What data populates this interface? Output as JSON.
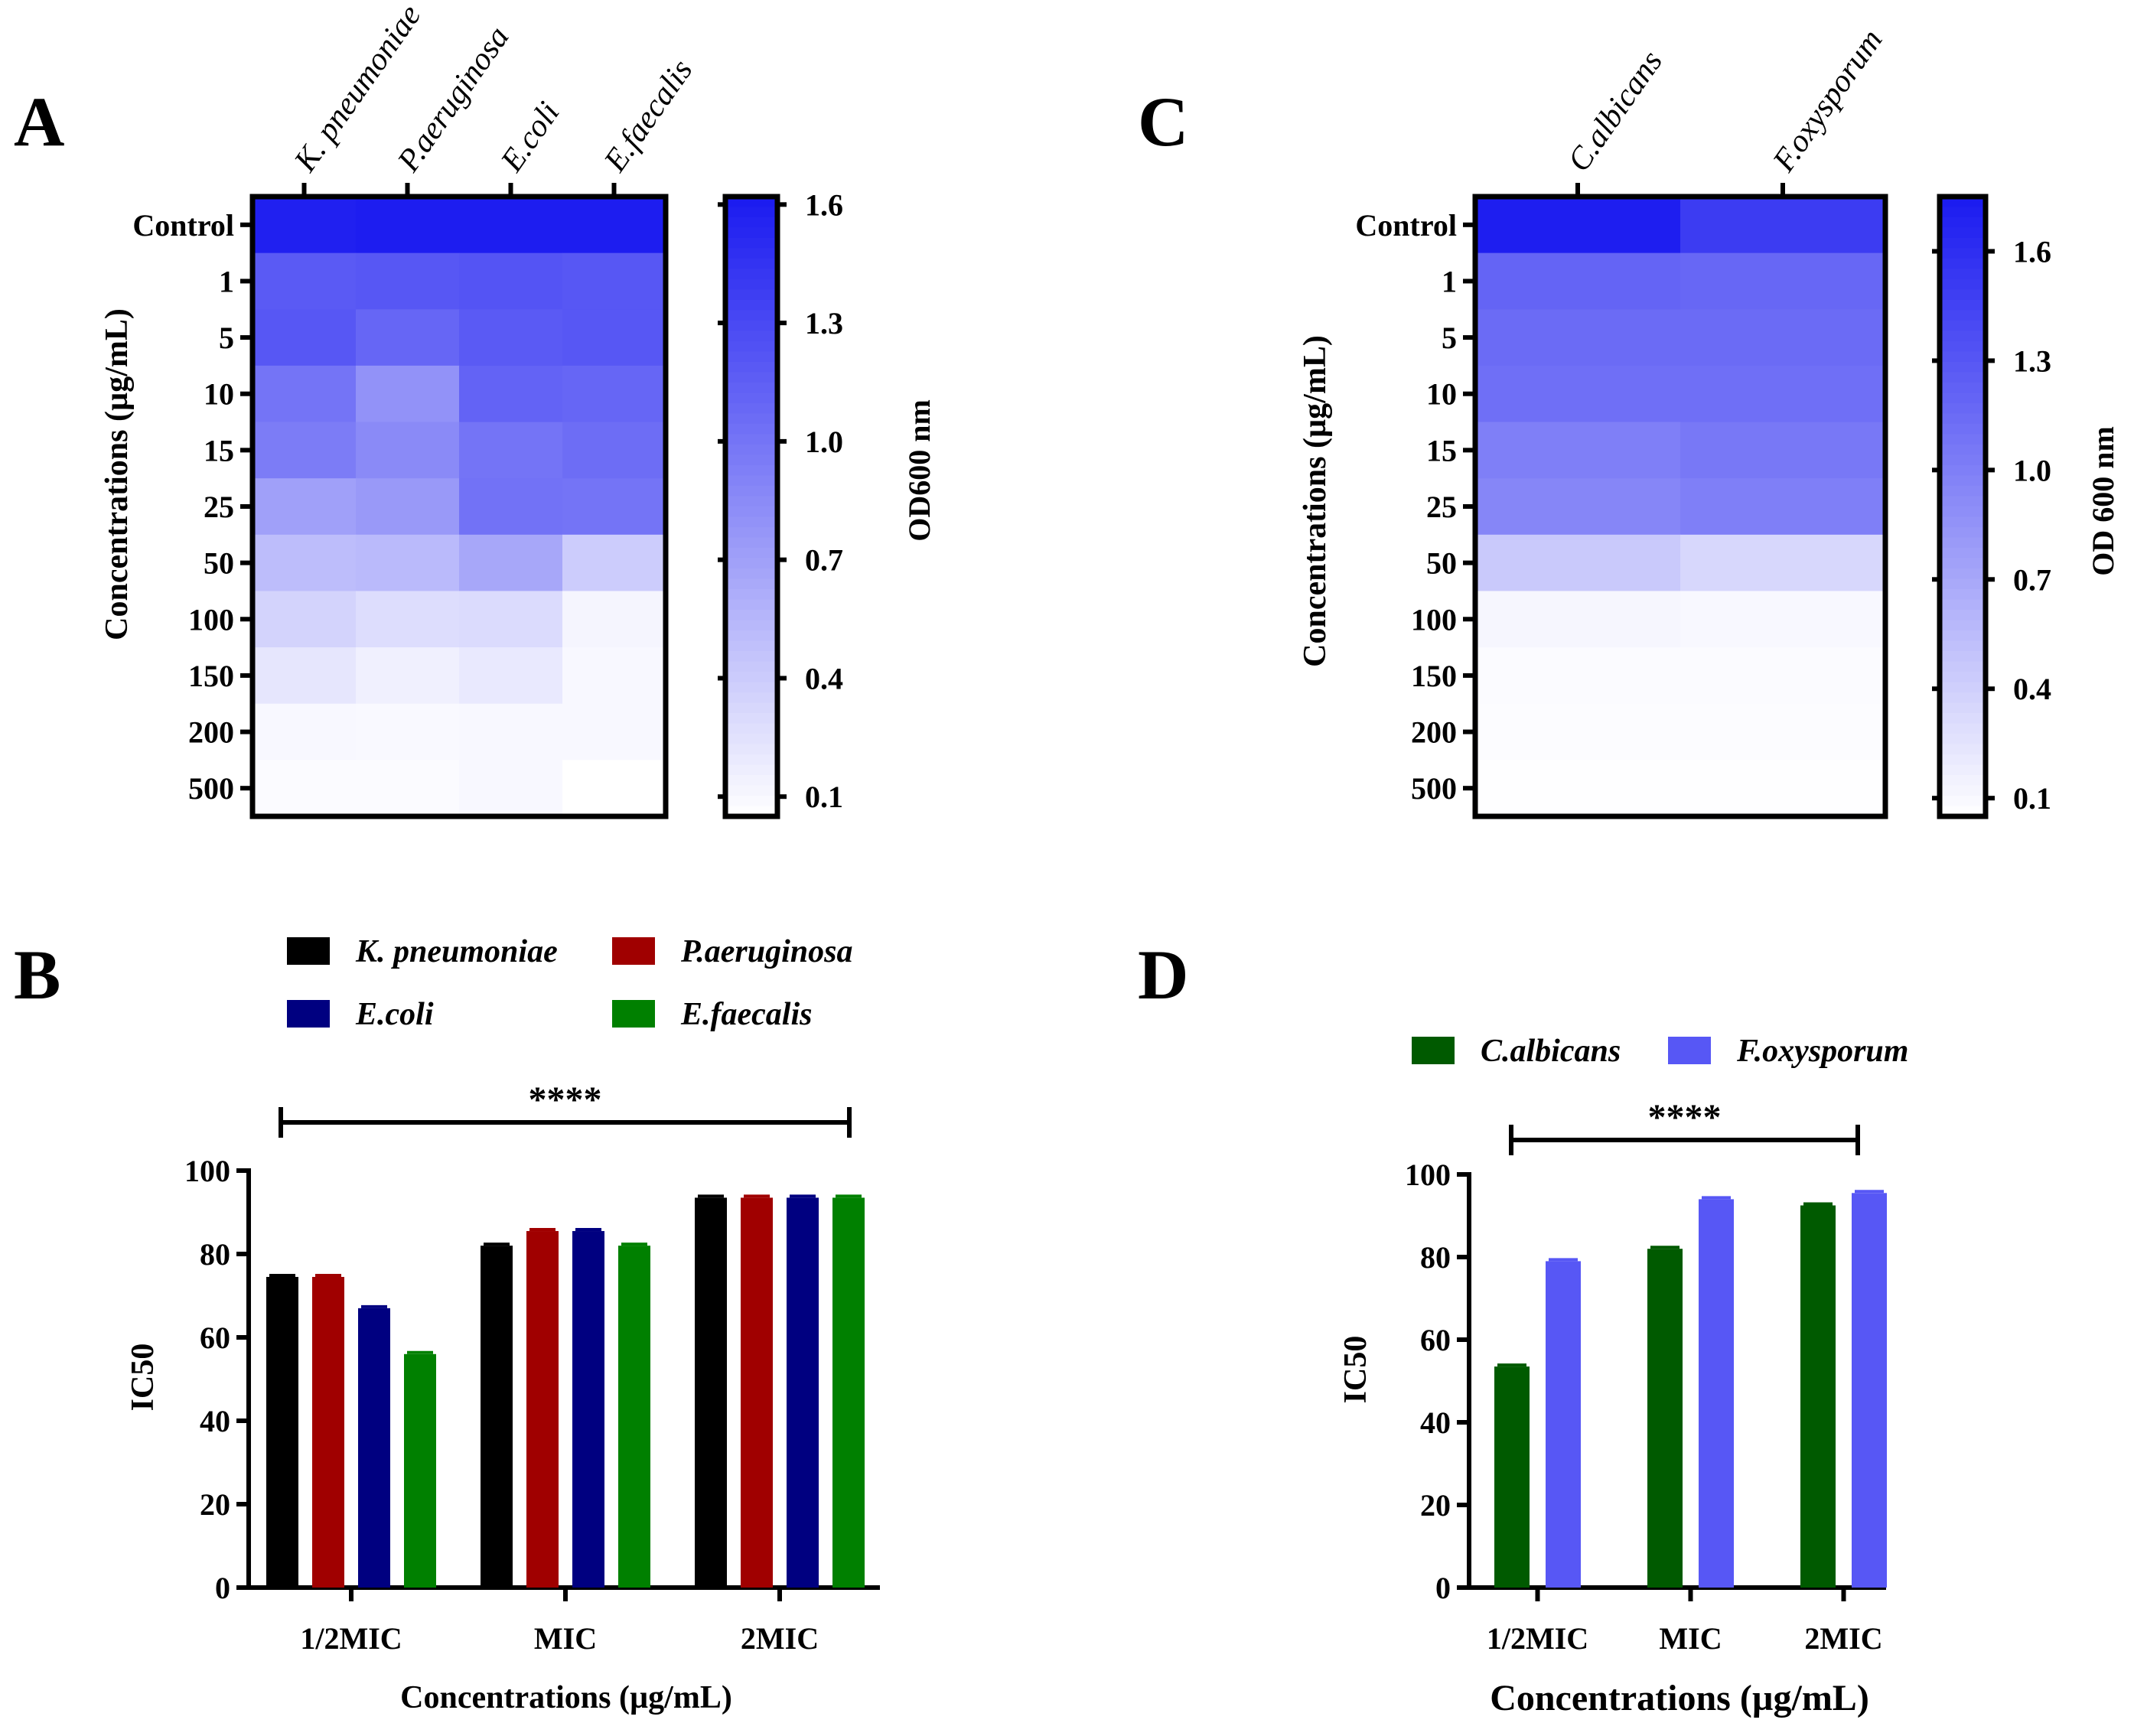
{
  "colors": {
    "heat_low": "#ffffff",
    "heat_high": "#1a1af0",
    "kpneumoniae": "#000000",
    "paeruginosa": "#a00000",
    "ecoli": "#000080",
    "efaecalis": "#008000",
    "calbicans": "#005a00",
    "foxysporum": "#5757f5"
  },
  "panels": {
    "A": {
      "letter": "A"
    },
    "B": {
      "letter": "B"
    },
    "C": {
      "letter": "C"
    },
    "D": {
      "letter": "D"
    }
  },
  "chart_data": [
    {
      "panel": "A",
      "type": "heatmap",
      "title": "",
      "columns": [
        "K. pneumoniae",
        "P.aeruginosa",
        "E.coli",
        "E.faecalis"
      ],
      "rows": [
        "Control",
        "1",
        "5",
        "10",
        "15",
        "25",
        "50",
        "100",
        "150",
        "200",
        "500"
      ],
      "ylabel": "Concentrations (µg/mL)",
      "colorbar": {
        "label": "OD600 nm",
        "range": [
          0.05,
          1.62
        ],
        "ticks": [
          "1.6",
          "1.3",
          "1.0",
          "0.7",
          "0.4",
          "0.1"
        ],
        "tick_values": [
          1.6,
          1.3,
          1.0,
          0.7,
          0.4,
          0.1
        ]
      },
      "values": [
        [
          1.58,
          1.6,
          1.6,
          1.6
        ],
        [
          1.18,
          1.2,
          1.22,
          1.2
        ],
        [
          1.2,
          1.1,
          1.18,
          1.2
        ],
        [
          1.0,
          0.8,
          1.12,
          1.1
        ],
        [
          0.95,
          0.85,
          1.0,
          1.05
        ],
        [
          0.7,
          0.75,
          1.02,
          1.0
        ],
        [
          0.5,
          0.52,
          0.65,
          0.4
        ],
        [
          0.35,
          0.28,
          0.3,
          0.12
        ],
        [
          0.22,
          0.15,
          0.2,
          0.1
        ],
        [
          0.1,
          0.09,
          0.1,
          0.1
        ],
        [
          0.08,
          0.08,
          0.1,
          0.05
        ]
      ]
    },
    {
      "panel": "B",
      "type": "bar",
      "title": "",
      "categories": [
        "1/2MIC",
        "MIC",
        "2MIC"
      ],
      "series": [
        {
          "name": "K. pneumoniae",
          "values": [
            74.5,
            82,
            93.5
          ],
          "color": "#000000"
        },
        {
          "name": "P.aeruginosa",
          "values": [
            74.5,
            85.5,
            93.5
          ],
          "color": "#a00000"
        },
        {
          "name": "E.coli",
          "values": [
            67,
            85.5,
            93.5
          ],
          "color": "#000080"
        },
        {
          "name": "E.faecalis",
          "values": [
            56,
            82,
            93.5
          ],
          "color": "#008000"
        }
      ],
      "xlabel": "Concentrations (µg/mL)",
      "ylabel": "IC50",
      "ylim": [
        0,
        100
      ],
      "yticks": [
        "0",
        "20",
        "40",
        "60",
        "80",
        "100"
      ],
      "ytick_values": [
        0,
        20,
        40,
        60,
        80,
        100
      ],
      "significance": "****",
      "legend_position": "top"
    },
    {
      "panel": "C",
      "type": "heatmap",
      "title": "",
      "columns": [
        "C.albicans",
        "F.oxysporum"
      ],
      "rows": [
        "Control",
        "1",
        "5",
        "10",
        "15",
        "25",
        "50",
        "100",
        "150",
        "200",
        "500"
      ],
      "ylabel": "Concentrations (µg/mL)",
      "colorbar": {
        "label": "OD 600 nm",
        "range": [
          0.05,
          1.75
        ],
        "ticks": [
          "1.6",
          "1.3",
          "1.0",
          "0.7",
          "0.4",
          "0.1"
        ],
        "tick_values": [
          1.6,
          1.3,
          1.0,
          0.7,
          0.4,
          0.1
        ]
      },
      "values": [
        [
          1.72,
          1.5
        ],
        [
          1.2,
          1.18
        ],
        [
          1.15,
          1.15
        ],
        [
          1.12,
          1.12
        ],
        [
          1.0,
          1.05
        ],
        [
          0.95,
          1.0
        ],
        [
          0.45,
          0.35
        ],
        [
          0.12,
          0.1
        ],
        [
          0.08,
          0.08
        ],
        [
          0.07,
          0.07
        ],
        [
          0.06,
          0.06
        ]
      ]
    },
    {
      "panel": "D",
      "type": "bar",
      "title": "",
      "categories": [
        "1/2MIC",
        "MIC",
        "2MIC"
      ],
      "series": [
        {
          "name": "C.albicans",
          "values": [
            53.5,
            82,
            92.5
          ],
          "color": "#005a00"
        },
        {
          "name": "F.oxysporum",
          "values": [
            79,
            94,
            95.5
          ],
          "color": "#5757f5"
        }
      ],
      "xlabel": "Concentrations (µg/mL)",
      "ylabel": "IC50",
      "ylim": [
        0,
        100
      ],
      "yticks": [
        "0",
        "20",
        "40",
        "60",
        "80",
        "100"
      ],
      "ytick_values": [
        0,
        20,
        40,
        60,
        80,
        100
      ],
      "significance": "****",
      "legend_position": "top"
    }
  ]
}
